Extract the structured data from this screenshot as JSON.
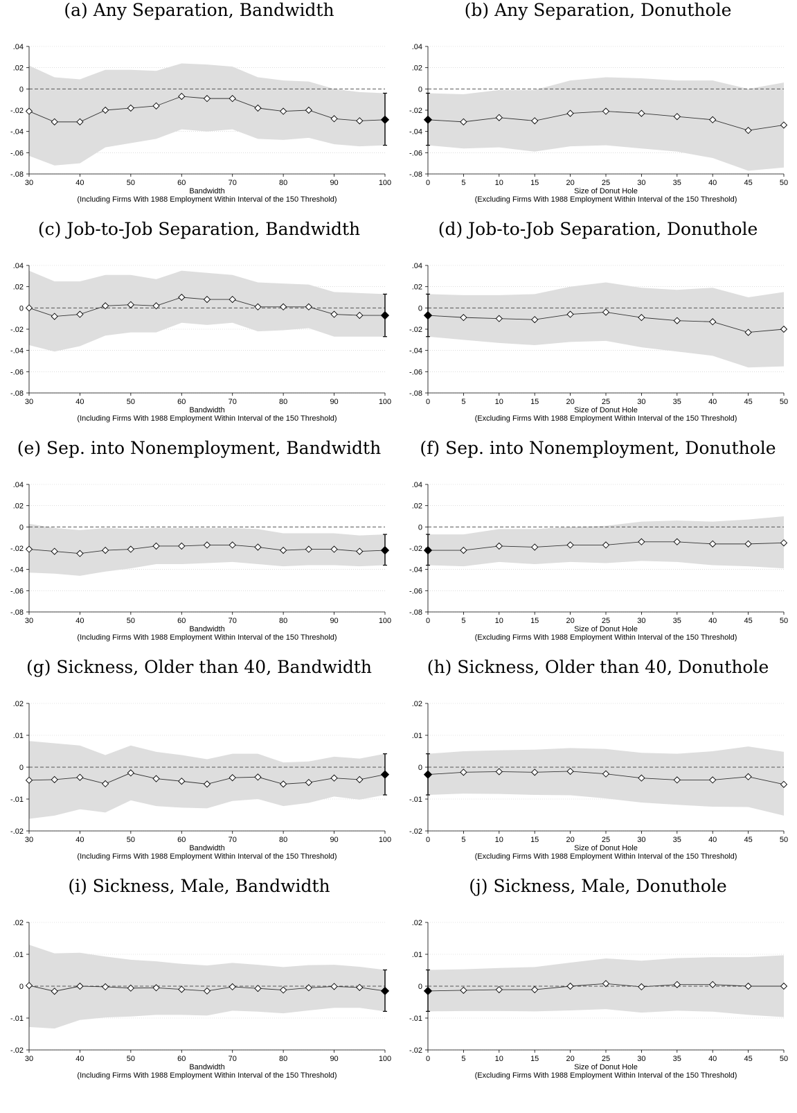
{
  "chart_data": [
    {
      "type": "line",
      "title": "(a) Any Separation, Bandwidth",
      "xlabel": "Bandwidth",
      "xlabel2": "(Including Firms With 1988 Employment Within Interval of the 150 Threshold)",
      "x": [
        30,
        35,
        40,
        45,
        50,
        55,
        60,
        65,
        70,
        75,
        80,
        85,
        90,
        95,
        100
      ],
      "xticks": [
        "30",
        "40",
        "50",
        "60",
        "70",
        "80",
        "90",
        "100"
      ],
      "xlim": [
        30,
        100
      ],
      "ylim": [
        -0.08,
        0.04
      ],
      "yticks": [
        "-.08",
        "-.06",
        "-.04",
        "-.02",
        "0",
        ".02",
        ".04"
      ],
      "series": [
        {
          "values": [
            -0.021,
            -0.031,
            -0.031,
            -0.02,
            -0.018,
            -0.016,
            -0.007,
            -0.009,
            -0.009,
            -0.018,
            -0.021,
            -0.02,
            -0.028,
            -0.03,
            -0.029
          ],
          "ci_low": [
            -0.063,
            -0.072,
            -0.07,
            -0.055,
            -0.051,
            -0.047,
            -0.038,
            -0.04,
            -0.038,
            -0.047,
            -0.048,
            -0.046,
            -0.052,
            -0.054,
            -0.053
          ],
          "ci_high": [
            0.022,
            0.011,
            0.009,
            0.018,
            0.018,
            0.017,
            0.024,
            0.023,
            0.021,
            0.011,
            0.008,
            0.007,
            0.0,
            -0.003,
            -0.004
          ]
        }
      ],
      "highlight_index": 14,
      "highlight_ci": [
        -0.053,
        -0.004
      ]
    },
    {
      "type": "line",
      "title": "(b) Any Separation, Donuthole",
      "xlabel": "Size of Donut Hole",
      "xlabel2": "(Excluding Firms With 1988 Employment Within Interval of the 150 Threshold)",
      "x": [
        0,
        5,
        10,
        15,
        20,
        25,
        30,
        35,
        40,
        45,
        50
      ],
      "xticks": [
        "0",
        "5",
        "10",
        "15",
        "20",
        "25",
        "30",
        "35",
        "40",
        "45",
        "50"
      ],
      "xlim": [
        0,
        50
      ],
      "ylim": [
        -0.08,
        0.04
      ],
      "yticks": [
        "-.08",
        "-.06",
        "-.04",
        "-.02",
        "0",
        ".02",
        ".04"
      ],
      "series": [
        {
          "values": [
            -0.029,
            -0.031,
            -0.027,
            -0.03,
            -0.023,
            -0.021,
            -0.023,
            -0.026,
            -0.029,
            -0.039,
            -0.034
          ],
          "ci_low": [
            -0.053,
            -0.056,
            -0.055,
            -0.059,
            -0.054,
            -0.053,
            -0.056,
            -0.059,
            -0.065,
            -0.077,
            -0.074
          ],
          "ci_high": [
            -0.004,
            -0.005,
            -0.001,
            -0.001,
            0.008,
            0.011,
            0.01,
            0.008,
            0.008,
            0.0,
            0.006
          ]
        }
      ],
      "highlight_index": 0,
      "highlight_ci": [
        -0.053,
        -0.004
      ]
    },
    {
      "type": "line",
      "title": "(c) Job-to-Job Separation, Bandwidth",
      "xlabel": "Bandwidth",
      "xlabel2": "(Including Firms With 1988 Employment Within Interval of the 150 Threshold)",
      "x": [
        30,
        35,
        40,
        45,
        50,
        55,
        60,
        65,
        70,
        75,
        80,
        85,
        90,
        95,
        100
      ],
      "xticks": [
        "30",
        "40",
        "50",
        "60",
        "70",
        "80",
        "90",
        "100"
      ],
      "xlim": [
        30,
        100
      ],
      "ylim": [
        -0.08,
        0.04
      ],
      "yticks": [
        "-.08",
        "-.06",
        "-.04",
        "-.02",
        "0",
        ".02",
        ".04"
      ],
      "series": [
        {
          "values": [
            0.0,
            -0.008,
            -0.006,
            0.002,
            0.003,
            0.002,
            0.01,
            0.008,
            0.008,
            0.001,
            0.001,
            0.001,
            -0.006,
            -0.007,
            -0.007
          ],
          "ci_low": [
            -0.035,
            -0.041,
            -0.036,
            -0.026,
            -0.023,
            -0.023,
            -0.014,
            -0.016,
            -0.014,
            -0.022,
            -0.021,
            -0.019,
            -0.027,
            -0.027,
            -0.027
          ],
          "ci_high": [
            0.035,
            0.025,
            0.025,
            0.031,
            0.031,
            0.027,
            0.035,
            0.033,
            0.031,
            0.024,
            0.023,
            0.022,
            0.015,
            0.014,
            0.013
          ]
        }
      ],
      "highlight_index": 14,
      "highlight_ci": [
        -0.027,
        0.013
      ]
    },
    {
      "type": "line",
      "title": "(d) Job-to-Job Separation, Donuthole",
      "xlabel": "Size of Donut Hole",
      "xlabel2": "(Excluding Firms With 1988 Employment Within Interval of the 150 Threshold)",
      "x": [
        0,
        5,
        10,
        15,
        20,
        25,
        30,
        35,
        40,
        45,
        50
      ],
      "xticks": [
        "0",
        "5",
        "10",
        "15",
        "20",
        "25",
        "30",
        "35",
        "40",
        "45",
        "50"
      ],
      "xlim": [
        0,
        50
      ],
      "ylim": [
        -0.08,
        0.04
      ],
      "yticks": [
        "-.08",
        "-.06",
        "-.04",
        "-.02",
        "0",
        ".02",
        ".04"
      ],
      "series": [
        {
          "values": [
            -0.007,
            -0.009,
            -0.01,
            -0.011,
            -0.006,
            -0.004,
            -0.009,
            -0.012,
            -0.013,
            -0.023,
            -0.02
          ],
          "ci_low": [
            -0.027,
            -0.03,
            -0.033,
            -0.035,
            -0.032,
            -0.031,
            -0.037,
            -0.041,
            -0.045,
            -0.056,
            -0.055
          ],
          "ci_high": [
            0.013,
            0.012,
            0.012,
            0.013,
            0.02,
            0.024,
            0.019,
            0.017,
            0.019,
            0.01,
            0.015
          ]
        }
      ],
      "highlight_index": 0,
      "highlight_ci": [
        -0.027,
        0.013
      ]
    },
    {
      "type": "line",
      "title": "(e) Sep. into Nonemployment, Bandwidth",
      "xlabel": "Bandwidth",
      "xlabel2": "(Including Firms With 1988 Employment Within Interval of the 150 Threshold)",
      "x": [
        30,
        35,
        40,
        45,
        50,
        55,
        60,
        65,
        70,
        75,
        80,
        85,
        90,
        95,
        100
      ],
      "xticks": [
        "30",
        "40",
        "50",
        "60",
        "70",
        "80",
        "90",
        "100"
      ],
      "xlim": [
        30,
        100
      ],
      "ylim": [
        -0.08,
        0.04
      ],
      "yticks": [
        "-.08",
        "-.06",
        "-.04",
        "-.02",
        "0",
        ".02",
        ".04"
      ],
      "series": [
        {
          "values": [
            -0.021,
            -0.023,
            -0.025,
            -0.022,
            -0.021,
            -0.018,
            -0.018,
            -0.017,
            -0.017,
            -0.019,
            -0.022,
            -0.021,
            -0.021,
            -0.023,
            -0.022
          ],
          "ci_low": [
            -0.043,
            -0.044,
            -0.046,
            -0.042,
            -0.039,
            -0.035,
            -0.035,
            -0.034,
            -0.033,
            -0.035,
            -0.037,
            -0.036,
            -0.036,
            -0.037,
            -0.036
          ],
          "ci_high": [
            0.003,
            -0.001,
            -0.003,
            -0.001,
            -0.002,
            -0.001,
            -0.001,
            -0.001,
            -0.001,
            -0.002,
            -0.006,
            -0.006,
            -0.006,
            -0.008,
            -0.007
          ]
        }
      ],
      "highlight_index": 14,
      "highlight_ci": [
        -0.036,
        -0.007
      ]
    },
    {
      "type": "line",
      "title": "(f) Sep. into Nonemployment, Donuthole",
      "xlabel": "Size of Donut Hole",
      "xlabel2": "(Excluding Firms With 1988 Employment Within Interval of the 150 Threshold)",
      "x": [
        0,
        5,
        10,
        15,
        20,
        25,
        30,
        35,
        40,
        45,
        50
      ],
      "xticks": [
        "0",
        "5",
        "10",
        "15",
        "20",
        "25",
        "30",
        "35",
        "40",
        "45",
        "50"
      ],
      "xlim": [
        0,
        50
      ],
      "ylim": [
        -0.08,
        0.04
      ],
      "yticks": [
        "-.08",
        "-.06",
        "-.04",
        "-.02",
        "0",
        ".02",
        ".04"
      ],
      "series": [
        {
          "values": [
            -0.022,
            -0.022,
            -0.018,
            -0.019,
            -0.017,
            -0.017,
            -0.014,
            -0.014,
            -0.016,
            -0.016,
            -0.015
          ],
          "ci_low": [
            -0.036,
            -0.037,
            -0.033,
            -0.035,
            -0.033,
            -0.034,
            -0.032,
            -0.033,
            -0.036,
            -0.037,
            -0.039
          ],
          "ci_high": [
            -0.007,
            -0.007,
            -0.002,
            -0.002,
            0.0,
            0.001,
            0.005,
            0.006,
            0.005,
            0.007,
            0.01
          ]
        }
      ],
      "highlight_index": 0,
      "highlight_ci": [
        -0.036,
        -0.007
      ]
    },
    {
      "type": "line",
      "title": "(g) Sickness, Older than 40, Bandwidth",
      "xlabel": "Bandwidth",
      "xlabel2": "(Including Firms With 1988 Employment Within Interval of the 150 Threshold)",
      "x": [
        30,
        35,
        40,
        45,
        50,
        55,
        60,
        65,
        70,
        75,
        80,
        85,
        90,
        95,
        100
      ],
      "xticks": [
        "30",
        "40",
        "50",
        "60",
        "70",
        "80",
        "90",
        "100"
      ],
      "xlim": [
        30,
        100
      ],
      "ylim": [
        -0.02,
        0.02
      ],
      "yticks": [
        "-.02",
        "-.01",
        "0",
        ".01",
        ".02"
      ],
      "series": [
        {
          "values": [
            -0.0041,
            -0.0039,
            -0.0032,
            -0.0052,
            -0.0018,
            -0.0036,
            -0.0044,
            -0.0053,
            -0.0033,
            -0.0031,
            -0.0053,
            -0.0048,
            -0.0034,
            -0.0039,
            -0.0023
          ],
          "ci_low": [
            -0.0162,
            -0.0152,
            -0.0132,
            -0.0142,
            -0.0104,
            -0.0122,
            -0.0127,
            -0.0129,
            -0.0106,
            -0.01,
            -0.0122,
            -0.0112,
            -0.0092,
            -0.0102,
            -0.0087
          ],
          "ci_high": [
            0.0082,
            0.0075,
            0.0068,
            0.0038,
            0.0068,
            0.0048,
            0.0038,
            0.0025,
            0.0042,
            0.0042,
            0.0015,
            0.0018,
            0.0033,
            0.0027,
            0.0042
          ]
        }
      ],
      "highlight_index": 14,
      "highlight_ci": [
        -0.0087,
        0.0042
      ]
    },
    {
      "type": "line",
      "title": "(h) Sickness, Older than 40, Donuthole",
      "xlabel": "Size of Donut Hole",
      "xlabel2": "(Excluding Firms With 1988 Employment Within Interval of the 150 Threshold)",
      "x": [
        0,
        5,
        10,
        15,
        20,
        25,
        30,
        35,
        40,
        45,
        50
      ],
      "xticks": [
        "0",
        "5",
        "10",
        "15",
        "20",
        "25",
        "30",
        "35",
        "40",
        "45",
        "50"
      ],
      "xlim": [
        0,
        50
      ],
      "ylim": [
        -0.02,
        0.02
      ],
      "yticks": [
        "-.02",
        "-.01",
        "0",
        ".01",
        ".02"
      ],
      "series": [
        {
          "values": [
            -0.0023,
            -0.0016,
            -0.0014,
            -0.0016,
            -0.0013,
            -0.0021,
            -0.0034,
            -0.004,
            -0.004,
            -0.003,
            -0.0054
          ],
          "ci_low": [
            -0.0087,
            -0.0083,
            -0.0084,
            -0.0087,
            -0.0088,
            -0.0098,
            -0.0111,
            -0.0118,
            -0.0124,
            -0.0125,
            -0.0152
          ],
          "ci_high": [
            0.0042,
            0.005,
            0.0053,
            0.0055,
            0.006,
            0.0057,
            0.0045,
            0.0042,
            0.005,
            0.0065,
            0.0048
          ]
        }
      ],
      "highlight_index": 0,
      "highlight_ci": [
        -0.0087,
        0.0042
      ]
    },
    {
      "type": "line",
      "title": "(i) Sickness, Male, Bandwidth",
      "xlabel": "Bandwidth",
      "xlabel2": "(Including Firms With 1988 Employment Within Interval of the 150 Threshold)",
      "x": [
        30,
        35,
        40,
        45,
        50,
        55,
        60,
        65,
        70,
        75,
        80,
        85,
        90,
        95,
        100
      ],
      "xticks": [
        "30",
        "40",
        "50",
        "60",
        "70",
        "80",
        "90",
        "100"
      ],
      "xlim": [
        30,
        100
      ],
      "ylim": [
        -0.02,
        0.02
      ],
      "yticks": [
        "-.02",
        "-.01",
        "0",
        ".01",
        ".02"
      ],
      "series": [
        {
          "values": [
            0.0002,
            -0.0016,
            0.0,
            -0.0002,
            -0.0006,
            -0.0005,
            -0.001,
            -0.0015,
            -0.0002,
            -0.0007,
            -0.0012,
            -0.0005,
            -0.0001,
            -0.0004,
            -0.0015
          ],
          "ci_low": [
            -0.0128,
            -0.0133,
            -0.0106,
            -0.0098,
            -0.0095,
            -0.009,
            -0.009,
            -0.0092,
            -0.0077,
            -0.008,
            -0.0085,
            -0.0076,
            -0.0068,
            -0.0068,
            -0.0079
          ],
          "ci_high": [
            0.013,
            0.0103,
            0.0105,
            0.0093,
            0.0083,
            0.0078,
            0.007,
            0.0065,
            0.0073,
            0.0067,
            0.006,
            0.0066,
            0.0067,
            0.0061,
            0.0051
          ]
        }
      ],
      "highlight_index": 14,
      "highlight_ci": [
        -0.0079,
        0.0051
      ]
    },
    {
      "type": "line",
      "title": "(j) Sickness, Male, Donuthole",
      "xlabel": "Size of Donut Hole",
      "xlabel2": "(Excluding Firms With 1988 Employment Within Interval of the 150 Threshold)",
      "x": [
        0,
        5,
        10,
        15,
        20,
        25,
        30,
        35,
        40,
        45,
        50
      ],
      "xticks": [
        "0",
        "5",
        "10",
        "15",
        "20",
        "25",
        "30",
        "35",
        "40",
        "45",
        "50"
      ],
      "xlim": [
        0,
        50
      ],
      "ylim": [
        -0.02,
        0.02
      ],
      "yticks": [
        "-.02",
        "-.01",
        "0",
        ".01",
        ".02"
      ],
      "series": [
        {
          "values": [
            -0.0015,
            -0.0013,
            -0.0011,
            -0.0011,
            0.0,
            0.0008,
            -0.0002,
            0.0005,
            0.0005,
            0.0,
            0.0
          ],
          "ci_low": [
            -0.0079,
            -0.0078,
            -0.0078,
            -0.0079,
            -0.0076,
            -0.0072,
            -0.0083,
            -0.0077,
            -0.008,
            -0.009,
            -0.0097
          ],
          "ci_high": [
            0.0051,
            0.0053,
            0.0057,
            0.006,
            0.0074,
            0.0087,
            0.008,
            0.0088,
            0.0091,
            0.0091,
            0.0097
          ]
        }
      ],
      "highlight_index": 0,
      "highlight_ci": [
        -0.0079,
        0.0051
      ]
    }
  ]
}
